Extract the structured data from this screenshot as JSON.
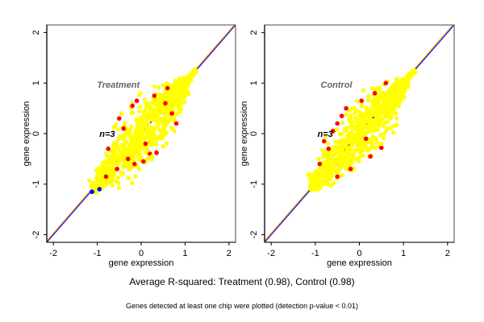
{
  "chart_data": [
    {
      "type": "scatter",
      "title": "Treatment",
      "annotation": "n=3",
      "xlabel": "gene expression",
      "ylabel": "gene expression",
      "xlim": [
        -2.15,
        2.15
      ],
      "ylim": [
        -2.15,
        2.15
      ],
      "xticks": [
        -2,
        -1,
        0,
        1,
        2
      ],
      "yticks": [
        -2,
        -1,
        0,
        1,
        2
      ],
      "grid": false,
      "reference_lines": [
        {
          "name": "identity",
          "slope": 1,
          "intercept": 0,
          "color": "#0000ff"
        },
        {
          "name": "fit",
          "slope": 1,
          "intercept": 0.03,
          "color": "#ffa500"
        }
      ],
      "cloud": {
        "x_range": [
          -1.1,
          1.25
        ],
        "center_slope": 1.0,
        "color": "#ffff00",
        "description": "dense yellow point cloud along diagonal"
      },
      "series": [
        {
          "name": "outliers",
          "color": "#ff0000",
          "points": [
            [
              -0.5,
              0.3
            ],
            [
              -0.75,
              -0.3
            ],
            [
              -0.2,
              0.55
            ],
            [
              -0.4,
              0.1
            ],
            [
              -0.3,
              -0.5
            ],
            [
              0.2,
              -0.4
            ],
            [
              0.35,
              -0.38
            ],
            [
              0.05,
              -0.55
            ],
            [
              0.8,
              0.2
            ],
            [
              0.7,
              0.4
            ],
            [
              0.55,
              0.6
            ],
            [
              0.3,
              0.75
            ],
            [
              -0.1,
              0.65
            ],
            [
              -0.55,
              -0.7
            ],
            [
              -0.8,
              -0.85
            ],
            [
              0.6,
              0.9
            ],
            [
              -0.15,
              -0.6
            ],
            [
              0.1,
              -0.2
            ]
          ]
        },
        {
          "name": "detected",
          "color": "#ffff00",
          "points": [
            [
              0.75,
              0.3
            ],
            [
              0.5,
              -0.25
            ],
            [
              0.25,
              -0.45
            ],
            [
              -0.45,
              0.4
            ]
          ]
        },
        {
          "name": "low",
          "color": "#0000ff",
          "points": [
            [
              -1.12,
              -1.15
            ],
            [
              -0.95,
              -1.1
            ]
          ]
        }
      ]
    },
    {
      "type": "scatter",
      "title": "Control",
      "annotation": "n=3",
      "xlabel": "gene expression",
      "ylabel": "gene expression",
      "xlim": [
        -2.15,
        2.15
      ],
      "ylim": [
        -2.15,
        2.15
      ],
      "xticks": [
        -2,
        -1,
        0,
        1,
        2
      ],
      "yticks": [
        -2,
        -1,
        0,
        1,
        2
      ],
      "grid": false,
      "reference_lines": [
        {
          "name": "identity",
          "slope": 1,
          "intercept": 0,
          "color": "#0000ff"
        },
        {
          "name": "fit",
          "slope": 1,
          "intercept": 0.03,
          "color": "#ffa500"
        }
      ],
      "cloud": {
        "x_range": [
          -1.1,
          1.25
        ],
        "center_slope": 1.0,
        "color": "#ffff00",
        "description": "dense yellow point cloud along diagonal"
      },
      "series": [
        {
          "name": "outliers",
          "color": "#ff0000",
          "points": [
            [
              -0.8,
              -0.15
            ],
            [
              -0.7,
              -0.3
            ],
            [
              -0.5,
              0.2
            ],
            [
              -0.6,
              0.05
            ],
            [
              -0.4,
              0.35
            ],
            [
              0.05,
              0.65
            ],
            [
              0.25,
              -0.45
            ],
            [
              0.5,
              -0.28
            ],
            [
              -0.2,
              -0.7
            ],
            [
              -0.5,
              -0.85
            ],
            [
              0.35,
              0.8
            ],
            [
              0.6,
              1.0
            ],
            [
              -0.9,
              -0.6
            ],
            [
              0.15,
              -0.1
            ],
            [
              -0.3,
              0.5
            ]
          ]
        },
        {
          "name": "detected",
          "color": "#ffff00",
          "points": [
            [
              0.85,
              0.17
            ],
            [
              0.5,
              -0.2
            ],
            [
              0.35,
              -0.28
            ],
            [
              0.7,
              0.3
            ],
            [
              0.05,
              0.55
            ],
            [
              1.0,
              0.72
            ]
          ]
        },
        {
          "name": "low",
          "color": "#0000ff",
          "points": []
        }
      ]
    }
  ],
  "captions": {
    "main": "Average R-squared: Treatment (0.98), Control (0.98)",
    "sub": "Genes detected at least one chip were plotted (detection p-value < 0.01)"
  }
}
